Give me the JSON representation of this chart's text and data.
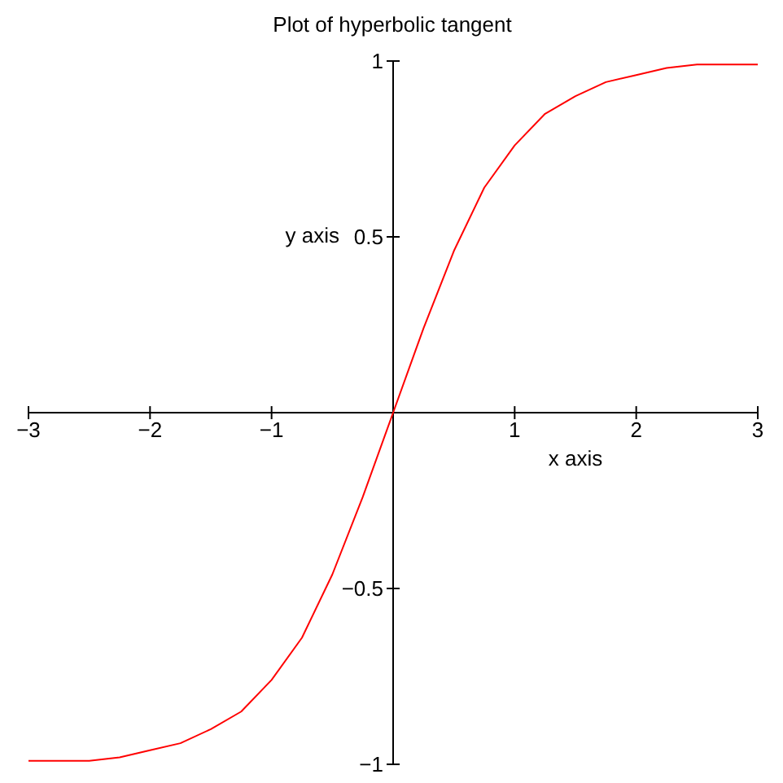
{
  "chart_data": {
    "type": "line",
    "title": "Plot of hyperbolic tangent",
    "xlabel": "x axis",
    "ylabel": "y axis",
    "x": [
      -3,
      -2.75,
      -2.5,
      -2.25,
      -2,
      -1.75,
      -1.5,
      -1.25,
      -1,
      -0.75,
      -0.5,
      -0.25,
      0,
      0.25,
      0.5,
      0.75,
      1,
      1.25,
      1.5,
      1.75,
      2,
      2.25,
      2.5,
      2.75,
      3
    ],
    "series": [
      {
        "color": "#ff0000",
        "values": [
          -0.99,
          -0.99,
          -0.99,
          -0.98,
          -0.96,
          -0.94,
          -0.9,
          -0.85,
          -0.76,
          -0.64,
          -0.46,
          -0.24,
          0,
          0.24,
          0.46,
          0.64,
          0.76,
          0.85,
          0.9,
          0.94,
          0.96,
          0.98,
          0.99,
          0.99,
          0.99
        ]
      }
    ],
    "xlim": [
      -3,
      3
    ],
    "ylim": [
      -1,
      1
    ],
    "xticks": [
      -3,
      -2,
      -1,
      1,
      2,
      3
    ],
    "yticks": [
      -1,
      -0.5,
      0.5,
      1
    ],
    "grid": false,
    "marker": "none",
    "line_style": "solid"
  }
}
